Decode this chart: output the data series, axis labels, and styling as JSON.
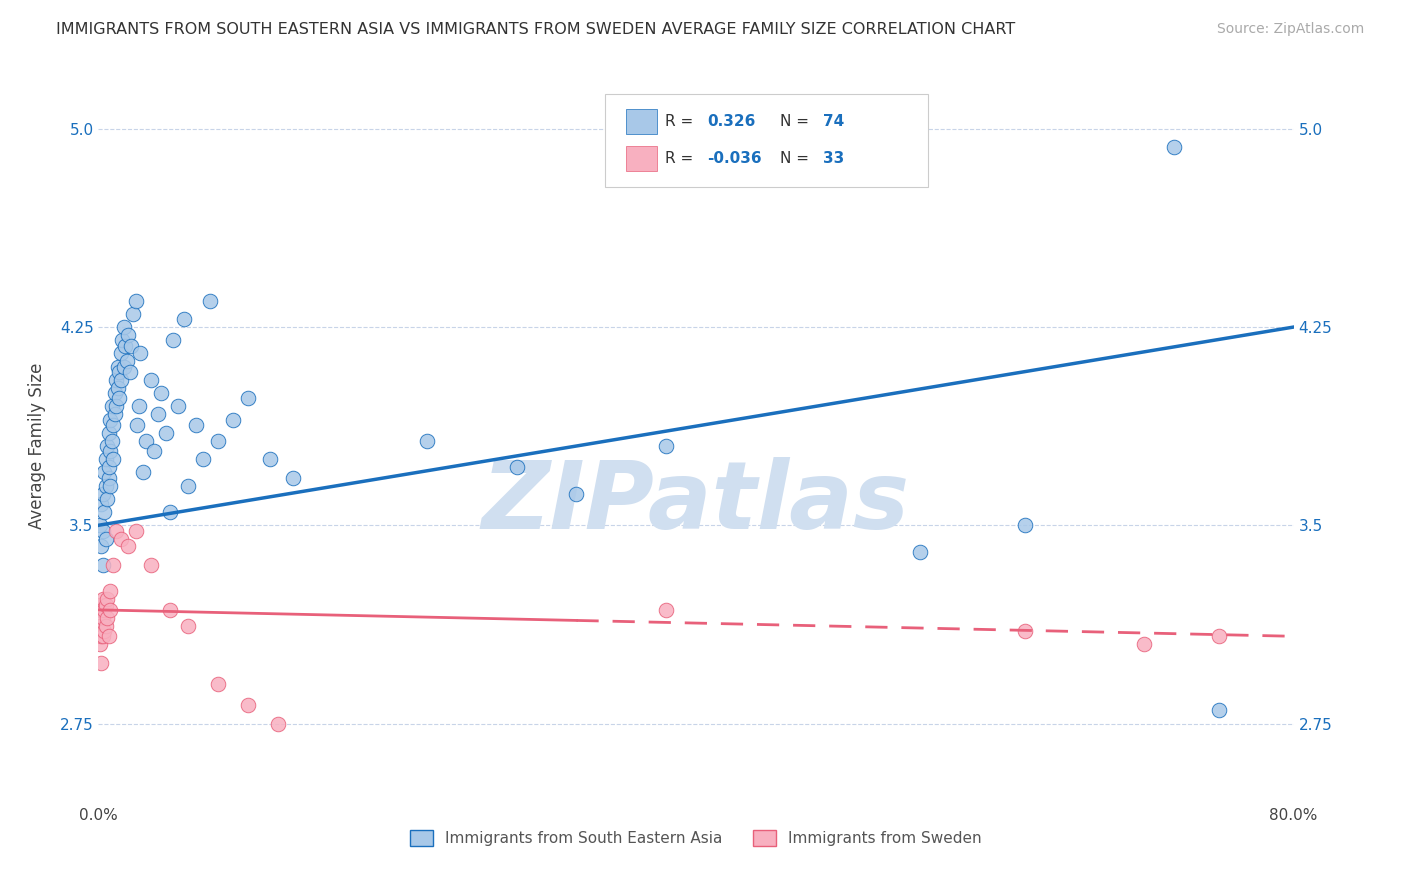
{
  "title": "IMMIGRANTS FROM SOUTH EASTERN ASIA VS IMMIGRANTS FROM SWEDEN AVERAGE FAMILY SIZE CORRELATION CHART",
  "source": "Source: ZipAtlas.com",
  "ylabel": "Average Family Size",
  "legend_label1": "Immigrants from South Eastern Asia",
  "legend_label2": "Immigrants from Sweden",
  "r1": 0.326,
  "n1": 74,
  "r2": -0.036,
  "n2": 33,
  "xlim": [
    0,
    0.8
  ],
  "ylim": [
    2.45,
    5.15
  ],
  "yticks": [
    2.75,
    3.5,
    4.25,
    5.0
  ],
  "xticklabels": [
    "0.0%",
    "80.0%"
  ],
  "color_blue": "#a8c8e8",
  "color_pink": "#f8b0c0",
  "trend_blue": "#1a6fbd",
  "trend_pink": "#e8607a",
  "background": "#ffffff",
  "grid_color": "#c8d4e8",
  "blue_scatter_x": [
    0.001,
    0.002,
    0.002,
    0.003,
    0.003,
    0.003,
    0.004,
    0.004,
    0.005,
    0.005,
    0.005,
    0.006,
    0.006,
    0.007,
    0.007,
    0.007,
    0.008,
    0.008,
    0.008,
    0.009,
    0.009,
    0.01,
    0.01,
    0.011,
    0.011,
    0.012,
    0.012,
    0.013,
    0.013,
    0.014,
    0.014,
    0.015,
    0.015,
    0.016,
    0.017,
    0.017,
    0.018,
    0.019,
    0.02,
    0.021,
    0.022,
    0.023,
    0.025,
    0.026,
    0.027,
    0.028,
    0.03,
    0.032,
    0.035,
    0.037,
    0.04,
    0.042,
    0.045,
    0.048,
    0.05,
    0.053,
    0.057,
    0.06,
    0.065,
    0.07,
    0.075,
    0.08,
    0.09,
    0.1,
    0.115,
    0.13,
    0.22,
    0.28,
    0.32,
    0.38,
    0.55,
    0.62,
    0.72,
    0.75
  ],
  "blue_scatter_y": [
    3.5,
    3.42,
    3.58,
    3.35,
    3.48,
    3.62,
    3.7,
    3.55,
    3.65,
    3.75,
    3.45,
    3.8,
    3.6,
    3.68,
    3.85,
    3.72,
    3.9,
    3.78,
    3.65,
    3.95,
    3.82,
    3.88,
    3.75,
    4.0,
    3.92,
    4.05,
    3.95,
    4.1,
    4.02,
    4.08,
    3.98,
    4.15,
    4.05,
    4.2,
    4.1,
    4.25,
    4.18,
    4.12,
    4.22,
    4.08,
    4.18,
    4.3,
    4.35,
    3.88,
    3.95,
    4.15,
    3.7,
    3.82,
    4.05,
    3.78,
    3.92,
    4.0,
    3.85,
    3.55,
    4.2,
    3.95,
    4.28,
    3.65,
    3.88,
    3.75,
    4.35,
    3.82,
    3.9,
    3.98,
    3.75,
    3.68,
    3.82,
    3.72,
    3.62,
    3.8,
    3.4,
    3.5,
    4.93,
    2.8
  ],
  "pink_scatter_x": [
    0.001,
    0.001,
    0.001,
    0.002,
    0.002,
    0.002,
    0.003,
    0.003,
    0.003,
    0.004,
    0.004,
    0.005,
    0.005,
    0.006,
    0.006,
    0.007,
    0.008,
    0.008,
    0.01,
    0.012,
    0.015,
    0.02,
    0.025,
    0.035,
    0.048,
    0.06,
    0.08,
    0.1,
    0.12,
    0.38,
    0.62,
    0.7,
    0.75
  ],
  "pink_scatter_y": [
    3.2,
    3.12,
    3.05,
    3.18,
    3.08,
    2.98,
    3.22,
    3.15,
    3.08,
    3.18,
    3.1,
    3.2,
    3.12,
    3.22,
    3.15,
    3.08,
    3.25,
    3.18,
    3.35,
    3.48,
    3.45,
    3.42,
    3.48,
    3.35,
    3.18,
    3.12,
    2.9,
    2.82,
    2.75,
    3.18,
    3.1,
    3.05,
    3.08
  ],
  "watermark": "ZIPatlas",
  "watermark_color": "#d0dff0"
}
